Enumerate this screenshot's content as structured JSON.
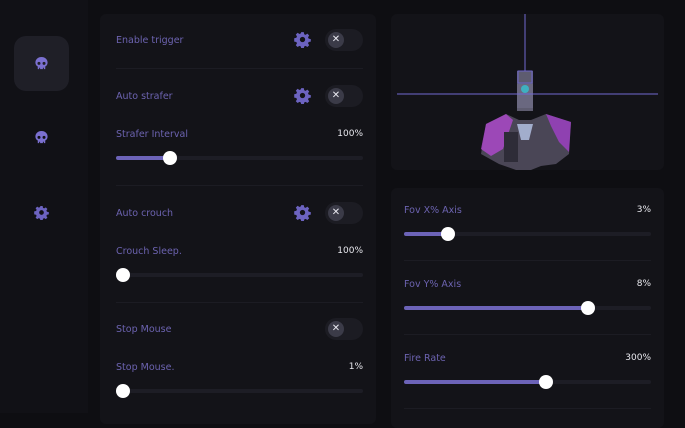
{
  "colors": {
    "accent": "#6c63b8",
    "label": "#6c63b0",
    "bg": "#0e0e12",
    "panel": "#131318"
  },
  "sidebar": {
    "items": [
      {
        "icon": "skull-icon",
        "active": true
      },
      {
        "icon": "skull-icon",
        "active": false
      },
      {
        "icon": "gear-icon",
        "active": false
      }
    ]
  },
  "left": {
    "enable_trigger": {
      "label": "Enable trigger",
      "on": false
    },
    "auto_strafer": {
      "label": "Auto strafer",
      "on": false
    },
    "strafer_interval": {
      "label": "Strafer Interval",
      "value": "100%",
      "fill": 0.2
    },
    "auto_crouch": {
      "label": "Auto crouch",
      "on": false
    },
    "crouch_sleep": {
      "label": "Crouch Sleep.",
      "value": "100%",
      "fill": 0
    },
    "stop_mouse": {
      "label": "Stop Mouse",
      "on": false
    },
    "stop_mouse_slider": {
      "label": "Stop Mouse.",
      "value": "1%",
      "fill": 0
    }
  },
  "right": {
    "fov_x": {
      "label": "Fov X% Axis",
      "value": "3%",
      "fill": 0.16
    },
    "fov_y": {
      "label": "Fov Y% Axis",
      "value": "8%",
      "fill": 0.76
    },
    "fire_rate": {
      "label": "Fire Rate",
      "value": "300%",
      "fill": 0.58
    }
  },
  "toggle_glyph": "✕"
}
